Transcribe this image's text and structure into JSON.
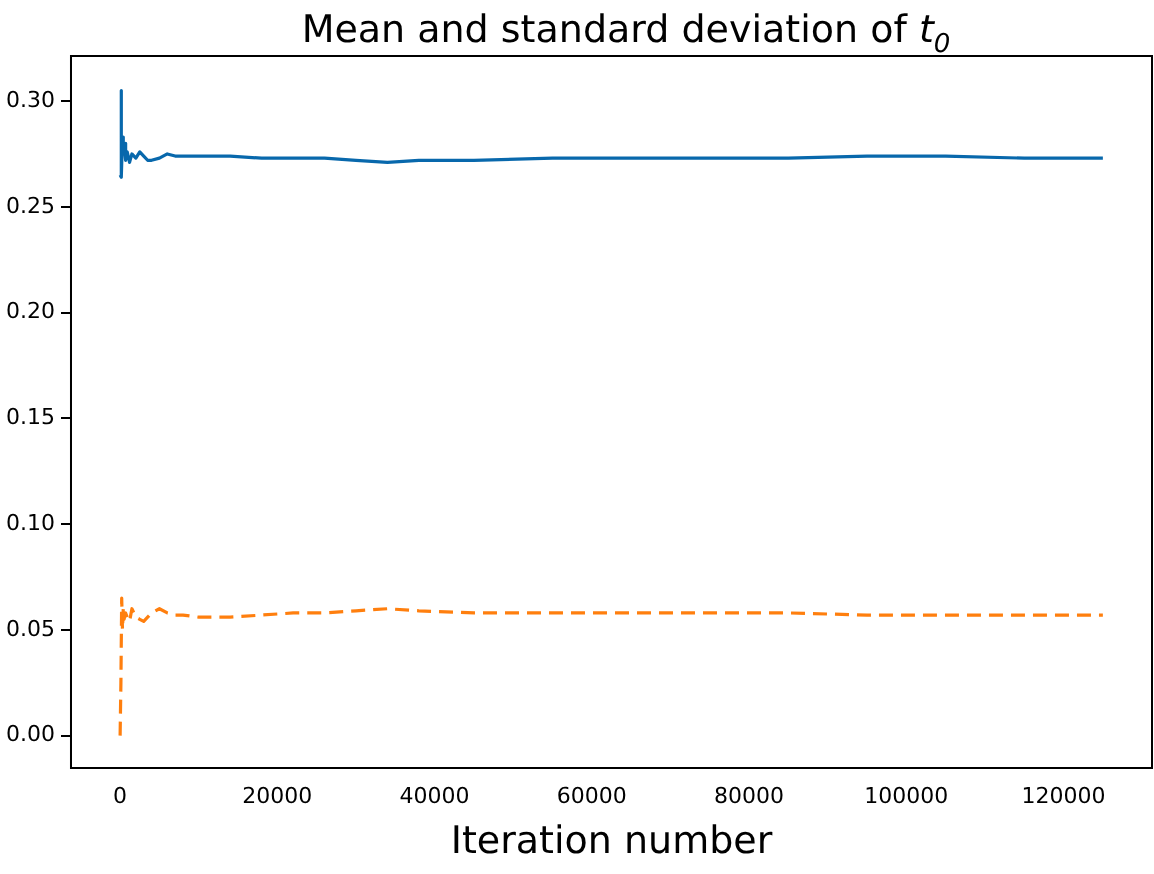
{
  "chart_data": {
    "type": "line",
    "title": "Mean and standard deviation of t$_{0}$",
    "xlabel": "Iteration number",
    "xlim": [
      -6250,
      131250
    ],
    "ylim": [
      -0.0153,
      0.3213
    ],
    "xticks": [
      0,
      20000,
      40000,
      60000,
      80000,
      100000,
      120000
    ],
    "yticks": [
      {
        "value": 0,
        "label": "0.00"
      },
      0.05,
      {
        "value": 0.1,
        "label": "0.10"
      },
      0.15,
      {
        "value": 0.2,
        "label": "0.20"
      },
      0.25,
      {
        "value": 0.3,
        "label": "0.30"
      }
    ],
    "grid": false,
    "legend": false,
    "series": [
      {
        "color": "#0868ac",
        "line_style": "solid",
        "x": [
          0,
          100,
          200,
          300,
          400,
          500,
          700,
          900,
          1200,
          1500,
          2000,
          2500,
          3000,
          3500,
          4000,
          5000,
          6000,
          7000,
          8000,
          10000,
          14000,
          18000,
          22000,
          26000,
          30000,
          34000,
          38000,
          45000,
          55000,
          65000,
          75000,
          85000,
          95000,
          105000,
          115000,
          125000
        ],
        "values": [
          0.265,
          0.305,
          0.264,
          0.283,
          0.275,
          0.28,
          0.272,
          0.276,
          0.271,
          0.275,
          0.273,
          0.276,
          0.274,
          0.272,
          0.272,
          0.273,
          0.275,
          0.274,
          0.274,
          0.274,
          0.274,
          0.273,
          0.273,
          0.273,
          0.272,
          0.271,
          0.272,
          0.272,
          0.273,
          0.273,
          0.273,
          0.273,
          0.274,
          0.274,
          0.273,
          0.273
        ]
      },
      {
        "color": "#ff7f0e",
        "line_style": "dashed",
        "x": [
          0,
          100,
          200,
          300,
          400,
          500,
          700,
          900,
          1200,
          1500,
          2000,
          2500,
          3000,
          3500,
          4000,
          5000,
          6000,
          7000,
          8000,
          10000,
          14000,
          18000,
          22000,
          26000,
          30000,
          34000,
          38000,
          45000,
          55000,
          65000,
          75000,
          85000,
          95000,
          105000,
          115000,
          125000
        ],
        "values": [
          0,
          0.025,
          0.065,
          0.05,
          0.06,
          0.055,
          0.058,
          0.056,
          0.054,
          0.06,
          0.056,
          0.055,
          0.054,
          0.056,
          0.058,
          0.06,
          0.058,
          0.057,
          0.057,
          0.056,
          0.056,
          0.057,
          0.058,
          0.058,
          0.059,
          0.06,
          0.059,
          0.058,
          0.058,
          0.058,
          0.058,
          0.058,
          0.057,
          0.057,
          0.057,
          0.057
        ]
      }
    ]
  }
}
